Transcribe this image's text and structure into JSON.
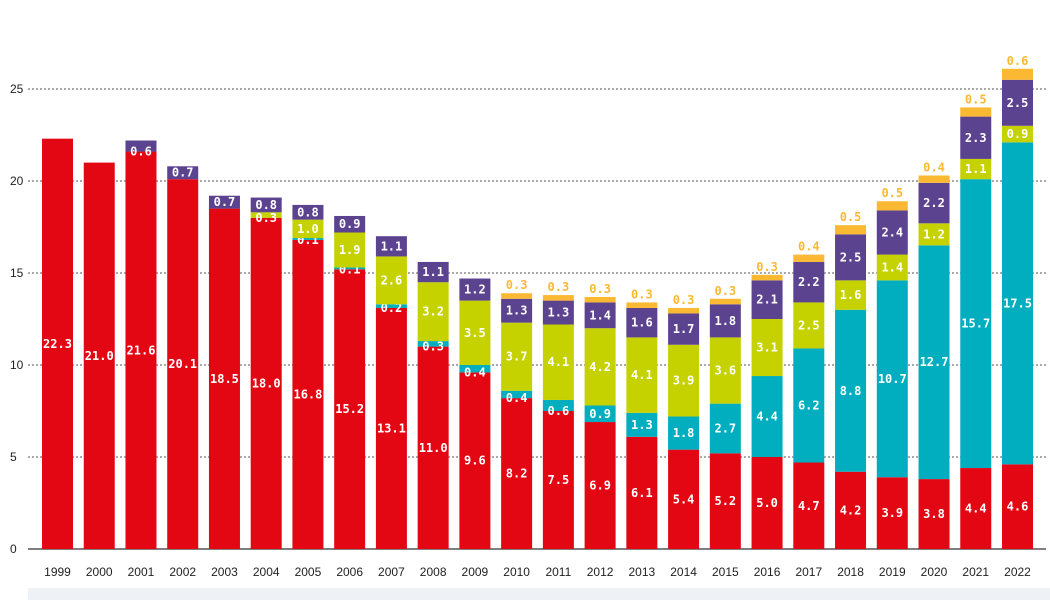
{
  "chart_data": {
    "type": "bar",
    "stacked": true,
    "title": "",
    "xlabel": "",
    "ylabel": "",
    "ylim": [
      0,
      25
    ],
    "yticks": [
      0,
      5,
      10,
      15,
      20,
      25
    ],
    "grid": "horizontal dashed",
    "legend": "none",
    "categories": [
      "1999",
      "2000",
      "2001",
      "2002",
      "2003",
      "2004",
      "2005",
      "2006",
      "2007",
      "2008",
      "2009",
      "2010",
      "2011",
      "2012",
      "2013",
      "2014",
      "2015",
      "2016",
      "2017",
      "2018",
      "2019",
      "2020",
      "2021",
      "2022"
    ],
    "series": [
      {
        "color": "#e30613",
        "values": [
          22.3,
          21.0,
          21.6,
          20.1,
          18.5,
          18.0,
          16.8,
          15.2,
          13.1,
          11.0,
          9.6,
          8.2,
          7.5,
          6.9,
          6.1,
          5.4,
          5.2,
          5.0,
          4.7,
          4.2,
          3.9,
          3.8,
          4.4,
          4.6
        ]
      },
      {
        "color": "#00aebf",
        "values": [
          null,
          null,
          null,
          null,
          null,
          null,
          0.1,
          0.1,
          0.2,
          0.3,
          0.4,
          0.4,
          0.6,
          0.9,
          1.3,
          1.8,
          2.7,
          4.4,
          6.2,
          8.8,
          10.7,
          12.7,
          15.7,
          17.5
        ]
      },
      {
        "color": "#c5d200",
        "values": [
          null,
          null,
          null,
          null,
          null,
          0.3,
          1.0,
          1.9,
          2.6,
          3.2,
          3.5,
          3.7,
          4.1,
          4.2,
          4.1,
          3.9,
          3.6,
          3.1,
          2.5,
          1.6,
          1.4,
          1.2,
          1.1,
          0.9
        ]
      },
      {
        "color": "#5b4390",
        "values": [
          null,
          null,
          0.6,
          0.7,
          0.7,
          0.8,
          0.8,
          0.9,
          1.1,
          1.1,
          1.2,
          1.3,
          1.3,
          1.4,
          1.6,
          1.7,
          1.8,
          2.1,
          2.2,
          2.5,
          2.4,
          2.2,
          2.3,
          2.5
        ]
      },
      {
        "color": "#fbb933",
        "values": [
          null,
          null,
          null,
          null,
          null,
          null,
          null,
          null,
          null,
          null,
          null,
          0.3,
          0.3,
          0.3,
          0.3,
          0.3,
          0.3,
          0.3,
          0.4,
          0.5,
          0.5,
          0.4,
          0.5,
          0.6
        ]
      }
    ]
  }
}
